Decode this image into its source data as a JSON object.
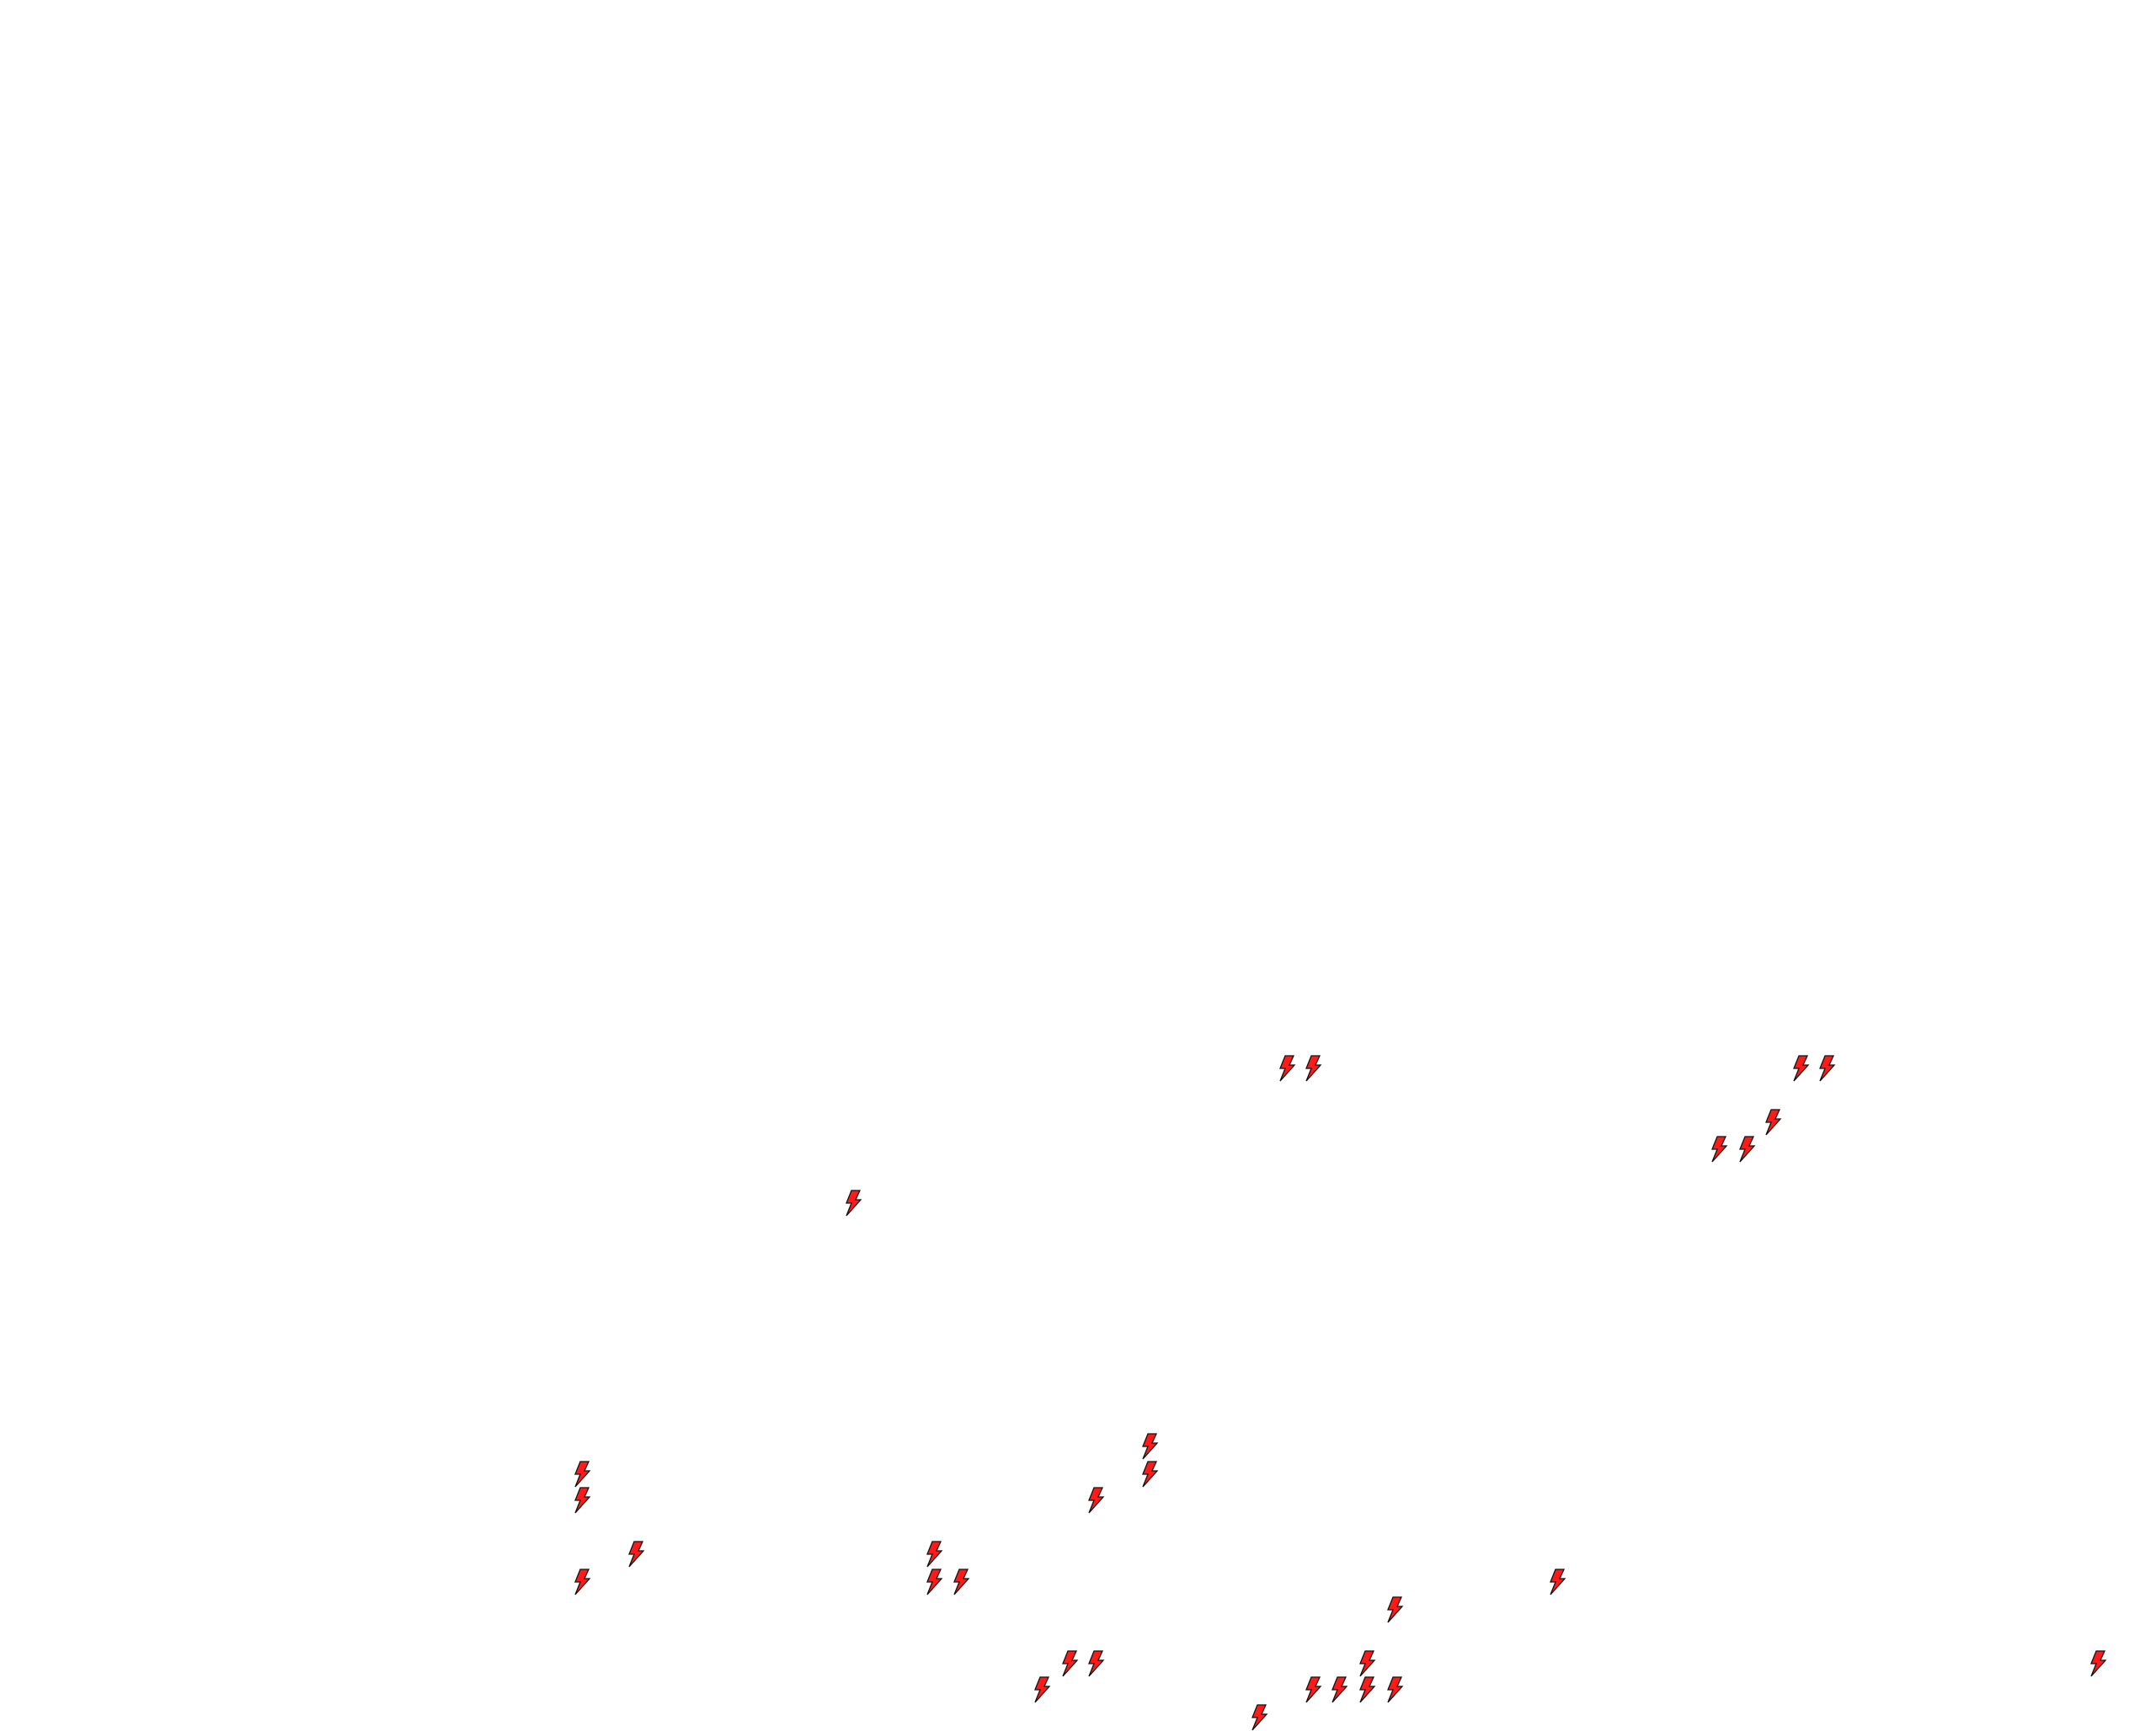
{
  "map": {
    "background": "#ffffff",
    "marker_icon": "lightning-bolt-icon",
    "marker_fill": "#ff1a1a",
    "marker_stroke": "#111111"
  }
}
